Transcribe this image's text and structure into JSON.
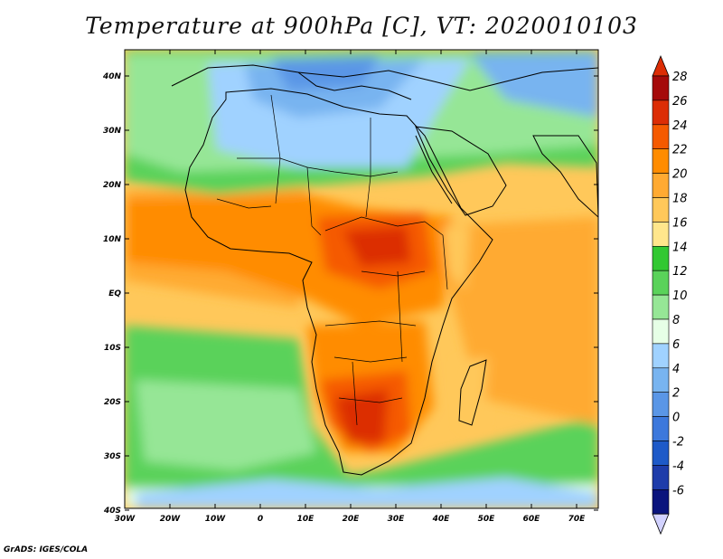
{
  "title": "Temperature at 900hPa [C], VT: 2020010103",
  "credit": "GrADS: IGES/COLA",
  "map": {
    "lon_ticks": [
      "30W",
      "20W",
      "10W",
      "0",
      "10E",
      "20E",
      "30E",
      "40E",
      "50E",
      "60E",
      "70E"
    ],
    "lat_ticks": [
      "40N",
      "30N",
      "20N",
      "10N",
      "EQ",
      "10S",
      "20S",
      "30S",
      "40S"
    ]
  },
  "colorbar": {
    "labels": [
      "28",
      "26",
      "24",
      "22",
      "20",
      "18",
      "16",
      "14",
      "12",
      "10",
      "8",
      "6",
      "4",
      "2",
      "0",
      "-2",
      "-4",
      "-6"
    ],
    "colors": [
      "#a50a0a",
      "#dc2d05",
      "#f55a00",
      "#ff8c00",
      "#ffaa32",
      "#ffc85a",
      "#ffe68c",
      "#32c832",
      "#5ad25a",
      "#96e696",
      "#e6ffe6",
      "#a0d2ff",
      "#78b4f0",
      "#5a96e6",
      "#3c78dc",
      "#1e5ac8",
      "#1e3caa",
      "#0a147d"
    ],
    "cap_top_color": "#dc2d05",
    "cap_bottom_color": "#d2d2ff"
  }
}
